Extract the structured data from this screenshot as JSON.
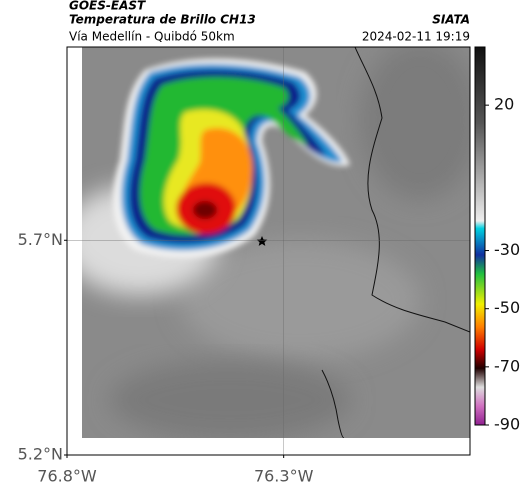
{
  "header": {
    "title": "GOES-EAST",
    "subtitle": "Temperatura de Brillo CH13",
    "source": "SIATA",
    "route": "Vía Medellín - Quibdó 50km",
    "datetime": "2024-02-11 19:19"
  },
  "map": {
    "lat_lim": [
      5.2,
      6.15
    ],
    "lon_lim": [
      -76.8,
      -75.87
    ],
    "lat_ticks": [
      {
        "value": 5.7,
        "label": "5.7°N"
      },
      {
        "value": 5.2,
        "label": "5.2°N"
      }
    ],
    "lon_ticks": [
      {
        "value": -76.8,
        "label": "76.8°W"
      },
      {
        "value": -76.3,
        "label": "76.3°W"
      }
    ],
    "grid": true
  },
  "colorbar": {
    "lim": [
      40,
      -90
    ],
    "ticks": [
      20,
      -30,
      -50,
      -70,
      -90
    ]
  }
}
